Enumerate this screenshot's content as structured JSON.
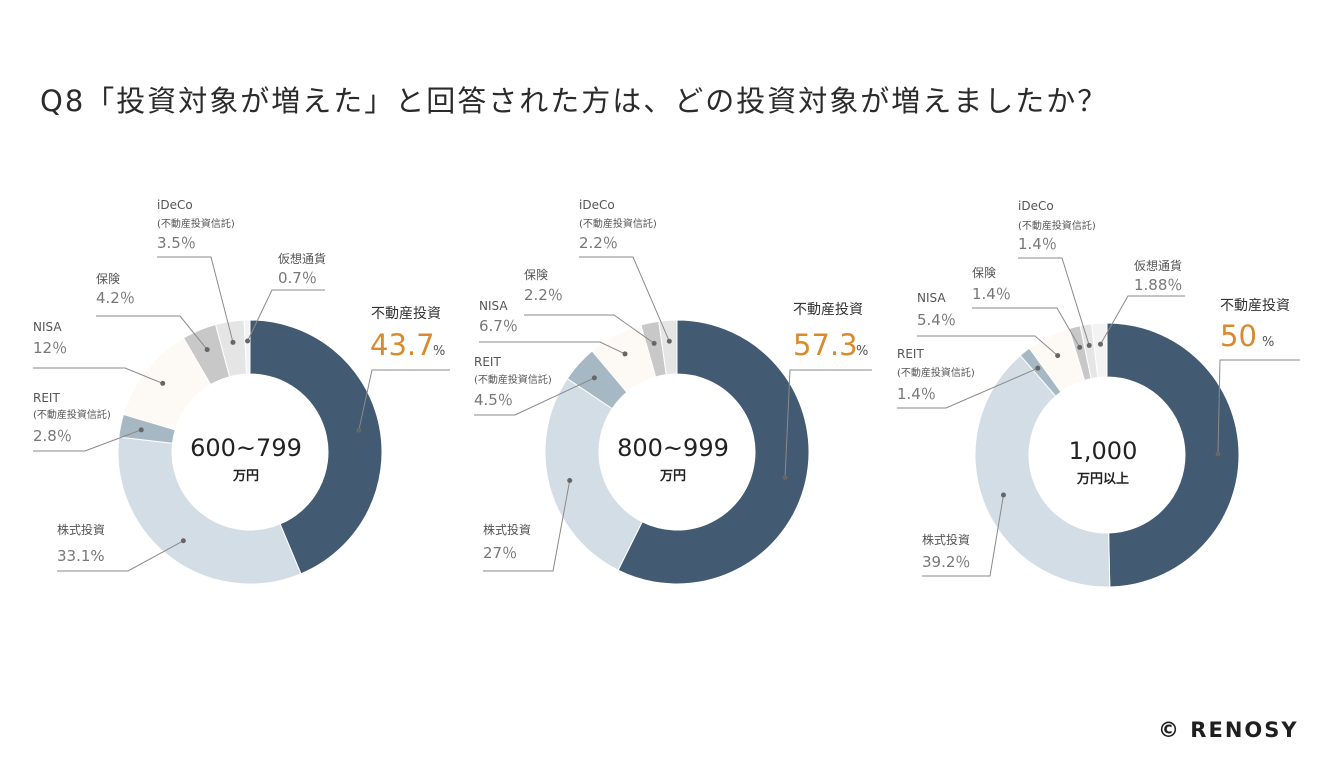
{
  "title": "Q8「投資対象が増えた」と回答された方は、どの投資対象が増えましたか？",
  "brand": "© RENOSY",
  "colors": {
    "不動産投資": "#425a72",
    "株式投資": "#d3dde6",
    "REIT": "#a5b8c3",
    "NISA": "#fdf9f5",
    "保険": "#c8c8c8",
    "iDeCo": "#e5e5e5",
    "仮想通貨": "#f3f3f3",
    "leader": "#8a8a8a",
    "label": "#555555",
    "value": "#777777",
    "highlight": "#d98a2b",
    "center_text": "#222222"
  },
  "chart_data": [
    {
      "type": "pie",
      "center": {
        "line1": "600~799",
        "line2": "万円"
      },
      "slices": [
        {
          "name": "不動産投資",
          "value": 43.7,
          "display": "43.7"
        },
        {
          "name": "株式投資",
          "value": 33.1,
          "display": "33.1%"
        },
        {
          "name": "REIT",
          "sub": "(不動産投資信託)",
          "value": 2.8,
          "display": "2.8％"
        },
        {
          "name": "NISA",
          "value": 12,
          "display": "12％"
        },
        {
          "name": "保険",
          "value": 4.2,
          "display": "4.2％"
        },
        {
          "name": "iDeCo",
          "sub": "(不動産投資信託)",
          "value": 3.5,
          "display": "3.5％"
        },
        {
          "name": "仮想通貨",
          "value": 0.7,
          "display": "0.7％"
        }
      ]
    },
    {
      "type": "pie",
      "center": {
        "line1": "800~999",
        "line2": "万円"
      },
      "slices": [
        {
          "name": "不動産投資",
          "value": 57.3,
          "display": "57.3"
        },
        {
          "name": "株式投資",
          "value": 27,
          "display": "27％"
        },
        {
          "name": "REIT",
          "sub": "(不動産投資信託)",
          "value": 4.5,
          "display": "4.5％"
        },
        {
          "name": "NISA",
          "value": 6.7,
          "display": "6.7％"
        },
        {
          "name": "保険",
          "value": 2.2,
          "display": "2.2％"
        },
        {
          "name": "iDeCo",
          "sub": "(不動産投資信託)",
          "value": 2.2,
          "display": "2.2％"
        }
      ]
    },
    {
      "type": "pie",
      "center": {
        "line1": "1,000",
        "line2": "万円以上"
      },
      "slices": [
        {
          "name": "不動産投資",
          "value": 50,
          "display": "50"
        },
        {
          "name": "株式投資",
          "value": 39.2,
          "display": "39.2％"
        },
        {
          "name": "REIT",
          "sub": "(不動産投資信託)",
          "value": 1.4,
          "display": "1.4％"
        },
        {
          "name": "NISA",
          "value": 5.4,
          "display": "5.4％"
        },
        {
          "name": "保険",
          "value": 1.4,
          "display": "1.4％"
        },
        {
          "name": "iDeCo",
          "sub": "(不動産投資信託)",
          "value": 1.4,
          "display": "1.4％"
        },
        {
          "name": "仮想通貨",
          "value": 1.88,
          "display": "1.88％"
        }
      ]
    }
  ]
}
